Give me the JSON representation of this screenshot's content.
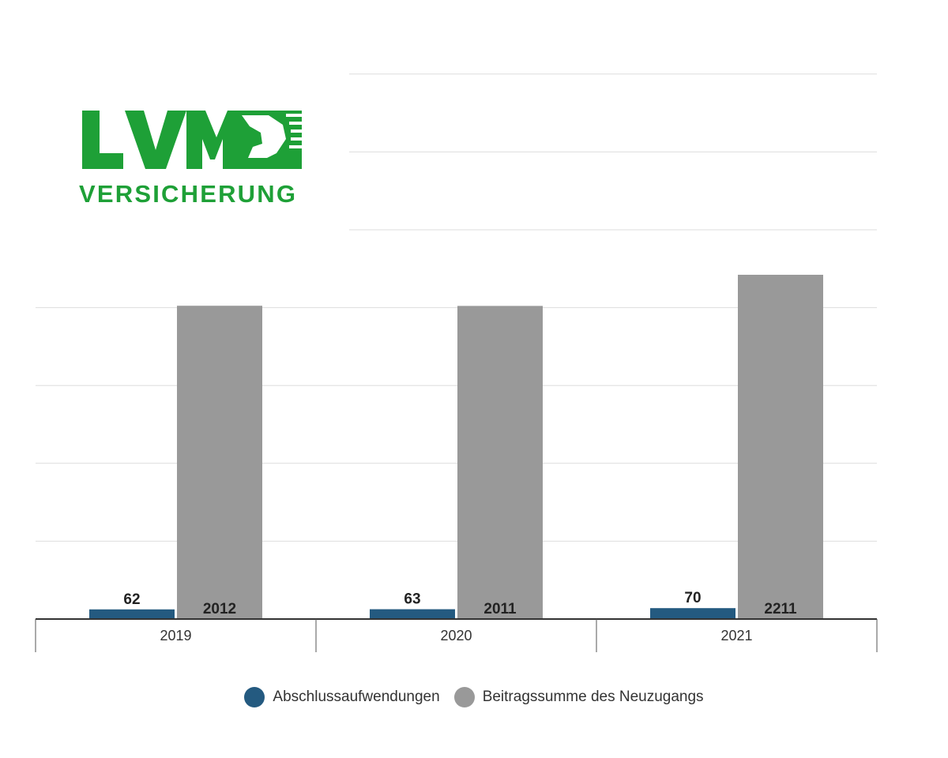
{
  "logo": {
    "mark": "LVM",
    "text": "VERSICHERUNG",
    "color": "#1ea037"
  },
  "chart_data": {
    "type": "bar",
    "categories": [
      "2019",
      "2020",
      "2021"
    ],
    "series": [
      {
        "name": "Abschlussaufwendungen",
        "values": [
          62,
          63,
          70
        ],
        "color": "#245a80"
      },
      {
        "name": "Beitragssumme des Neuzugangs",
        "values": [
          2012,
          2011,
          2211
        ],
        "color": "#999999"
      }
    ],
    "title": "",
    "xlabel": "",
    "ylabel": "",
    "ylim": [
      0,
      3500
    ],
    "grid": true,
    "legend": "bottom"
  }
}
